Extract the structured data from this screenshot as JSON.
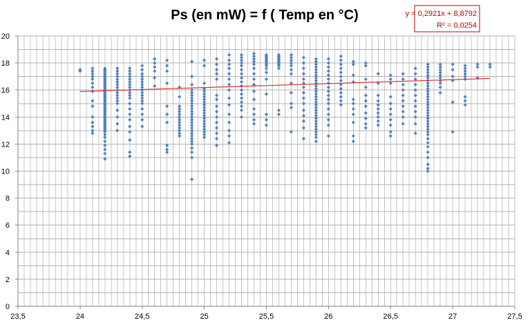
{
  "chart_data": {
    "type": "scatter",
    "title": "Ps (en mW) = f ( Temp en °C)",
    "xlabel": "",
    "ylabel": "",
    "xlim": [
      23.5,
      27.5
    ],
    "ylim": [
      0,
      20
    ],
    "x_ticks": [
      23.5,
      24,
      24.5,
      25,
      25.5,
      26,
      26.5,
      27,
      27.5
    ],
    "x_tick_labels": [
      "23,5",
      "24",
      "24,5",
      "25",
      "25,5",
      "26",
      "26,5",
      "27",
      "27,5"
    ],
    "y_ticks": [
      0,
      2,
      4,
      6,
      8,
      10,
      12,
      14,
      16,
      18,
      20
    ],
    "y_tick_labels": [
      "0",
      "2",
      "4",
      "6",
      "8",
      "10",
      "12",
      "14",
      "16",
      "18",
      "20"
    ],
    "grid": true,
    "legend": "none",
    "colors": {
      "points": "#4f81bd",
      "trendline": "#e0302a",
      "equation_border": "#c00000"
    },
    "trendline": {
      "type": "linear",
      "slope": 0.2921,
      "intercept": 8.8792,
      "x_range": [
        24,
        27.3
      ],
      "equation_text": "y = 0,2921x + 8,8792",
      "r2_text": "R² = 0,0254"
    },
    "series": [
      {
        "name": "Ps",
        "columns": [
          {
            "x": 24.0,
            "y": [
              17.5,
              17.4
            ]
          },
          {
            "x": 24.1,
            "y": [
              17.6,
              17.4,
              17.2,
              17.0,
              16.8,
              16.5,
              16.2,
              15.9,
              15.2,
              14.8,
              14.0,
              13.6,
              13.3,
              13.0,
              12.8
            ]
          },
          {
            "x": 24.2,
            "y": [
              17.6,
              17.5,
              17.4,
              17.3,
              17.2,
              17.1,
              17.0,
              16.9,
              16.8,
              16.7,
              16.6,
              16.5,
              16.4,
              16.3,
              16.2,
              16.1,
              16.0,
              15.9,
              15.8,
              15.7,
              15.6,
              15.5,
              15.4,
              15.3,
              15.2,
              15.1,
              15.0,
              14.9,
              14.8,
              14.7,
              14.6,
              14.5,
              14.4,
              14.3,
              14.2,
              14.1,
              14.0,
              13.9,
              13.8,
              13.7,
              13.6,
              13.5,
              13.4,
              13.3,
              13.2,
              13.1,
              13.0,
              12.9,
              12.7,
              12.5,
              12.2,
              11.9,
              11.6,
              11.3,
              10.9
            ]
          },
          {
            "x": 24.3,
            "y": [
              17.6,
              17.4,
              17.2,
              17.0,
              16.8,
              16.6,
              16.4,
              16.2,
              16.0,
              15.8,
              15.6,
              15.4,
              15.2,
              15.0,
              14.5,
              14.0,
              13.5,
              13.0
            ]
          },
          {
            "x": 24.4,
            "y": [
              17.6,
              17.4,
              17.2,
              17.0,
              16.8,
              16.6,
              16.4,
              16.2,
              16.0,
              15.8,
              15.6,
              15.4,
              15.0,
              14.6,
              14.2,
              13.8,
              13.3,
              12.9,
              12.3,
              11.4,
              11.1
            ]
          },
          {
            "x": 24.5,
            "y": [
              17.8,
              17.5,
              17.2,
              17.0,
              16.8,
              16.6,
              16.4,
              16.2,
              16.0,
              15.8,
              15.6,
              15.4,
              15.2,
              15.0,
              14.6,
              14.2,
              13.8,
              13.3
            ]
          },
          {
            "x": 24.6,
            "y": [
              18.3,
              18.0,
              17.7,
              17.4,
              16.9,
              16.3
            ]
          },
          {
            "x": 24.7,
            "y": [
              18.2,
              17.8,
              17.4,
              16.5,
              14.8,
              14.2,
              13.6,
              11.9,
              11.6,
              11.4
            ]
          },
          {
            "x": 24.8,
            "y": [
              16.2,
              15.5,
              14.8,
              14.6,
              14.4,
              14.2,
              14.0,
              13.8,
              13.6,
              13.4,
              13.2,
              13.0,
              12.8,
              12.6
            ]
          },
          {
            "x": 24.9,
            "y": [
              18.1,
              17.0,
              16.4,
              16.0,
              15.8,
              15.6,
              15.4,
              15.2,
              15.0,
              14.8,
              14.6,
              14.4,
              14.2,
              14.0,
              13.8,
              13.6,
              13.4,
              13.2,
              13.0,
              12.8,
              12.6,
              12.4,
              12.2,
              12.0,
              11.7,
              11.4,
              11.0,
              9.4
            ]
          },
          {
            "x": 25.0,
            "y": [
              18.2,
              17.8,
              16.5,
              16.1,
              15.9,
              15.7,
              15.5,
              15.3,
              15.1,
              14.9,
              14.7,
              14.5,
              14.3,
              14.1,
              13.9,
              13.7,
              13.5,
              13.3,
              13.1,
              12.9,
              12.7,
              12.5
            ]
          },
          {
            "x": 25.1,
            "y": [
              18.3,
              17.9,
              17.5,
              17.2,
              16.8,
              15.6,
              15.3,
              14.8,
              14.4,
              14.0,
              13.6,
              13.2,
              12.8,
              12.4,
              11.9
            ]
          },
          {
            "x": 25.2,
            "y": [
              18.6,
              18.2,
              17.9,
              17.6,
              17.2,
              16.8,
              16.4,
              16.0,
              15.4,
              14.9,
              14.2,
              13.6,
              13.0,
              12.6,
              12.1
            ]
          },
          {
            "x": 25.3,
            "y": [
              18.6,
              18.4,
              18.2,
              18.0,
              17.8,
              17.5,
              17.2,
              16.9,
              16.6,
              16.3,
              16.0,
              15.7,
              15.4,
              15.1,
              14.8,
              14.5,
              14.0
            ]
          },
          {
            "x": 25.4,
            "y": [
              18.7,
              18.5,
              18.3,
              18.1,
              17.9,
              17.6,
              17.2,
              16.8,
              16.4,
              15.9,
              15.3,
              14.6,
              14.2,
              13.8,
              13.5
            ]
          },
          {
            "x": 25.5,
            "y": [
              18.6,
              18.5,
              18.4,
              18.3,
              18.2,
              18.1,
              18.0,
              17.9,
              17.8,
              17.6,
              17.3,
              16.8,
              15.7,
              14.2,
              13.8,
              13.4
            ]
          },
          {
            "x": 25.6,
            "y": [
              18.6,
              18.5,
              18.4,
              18.3,
              18.2,
              18.1,
              18.0,
              17.9,
              17.8,
              17.6,
              14.5,
              14.2
            ]
          },
          {
            "x": 25.7,
            "y": [
              18.6,
              18.4,
              18.2,
              18.0,
              17.8,
              17.5,
              17.2,
              16.5,
              15.8,
              15.0,
              14.7,
              12.9
            ]
          },
          {
            "x": 25.8,
            "y": [
              18.4,
              18.0,
              17.6,
              17.2,
              16.8,
              16.5,
              16.2,
              15.8,
              15.4,
              15.0,
              14.5,
              14.1,
              13.7,
              13.2,
              12.4
            ]
          },
          {
            "x": 25.9,
            "y": [
              18.3,
              18.1,
              17.9,
              17.7,
              17.5,
              17.3,
              17.1,
              16.9,
              16.7,
              16.5,
              16.3,
              16.1,
              15.9,
              15.7,
              15.5,
              15.3,
              15.1,
              14.9,
              14.7,
              14.5,
              14.3,
              14.1,
              13.9,
              13.7,
              13.5,
              13.3,
              13.1,
              12.9,
              12.7,
              12.5,
              12.2
            ]
          },
          {
            "x": 26.0,
            "y": [
              18.3,
              18.0,
              17.7,
              17.4,
              17.1,
              16.8,
              16.5,
              16.2,
              15.9,
              15.6,
              15.3,
              15.0,
              14.6,
              14.2,
              13.8,
              13.4,
              12.6
            ]
          },
          {
            "x": 26.1,
            "y": [
              18.5,
              18.2,
              17.9,
              17.6,
              17.3,
              17.0,
              16.7,
              16.4,
              16.1,
              15.8,
              15.5,
              15.2,
              14.9
            ]
          },
          {
            "x": 26.2,
            "y": [
              18.1,
              17.9,
              17.1,
              16.6,
              15.3,
              15.0,
              14.6,
              14.2,
              13.6,
              12.6,
              12.2
            ]
          },
          {
            "x": 26.3,
            "y": [
              18.0,
              17.8,
              16.8,
              16.2,
              15.6,
              15.2,
              14.8,
              14.3,
              13.9,
              13.5,
              13.2
            ]
          },
          {
            "x": 26.4,
            "y": [
              17.2,
              16.5,
              15.6,
              15.2,
              14.9,
              14.6,
              14.3,
              14.0,
              13.7,
              13.4
            ]
          },
          {
            "x": 26.5,
            "y": [
              17.1,
              16.8,
              16.5,
              15.5,
              15.0,
              14.6,
              14.2,
              13.8,
              13.4,
              12.9,
              12.6
            ]
          },
          {
            "x": 26.6,
            "y": [
              17.2,
              16.8,
              16.4,
              16.0,
              15.6,
              15.2,
              14.8,
              14.4,
              14.0,
              13.5
            ]
          },
          {
            "x": 26.7,
            "y": [
              17.6,
              17.2,
              16.8,
              16.4,
              16.0,
              15.6,
              15.2,
              14.8,
              14.4,
              14.0,
              13.5,
              12.8
            ]
          },
          {
            "x": 26.8,
            "y": [
              17.9,
              17.7,
              17.5,
              17.3,
              17.1,
              16.9,
              16.7,
              16.5,
              16.3,
              16.1,
              15.9,
              15.7,
              15.5,
              15.3,
              15.1,
              14.9,
              14.7,
              14.5,
              14.3,
              14.1,
              13.9,
              13.7,
              13.5,
              13.3,
              13.1,
              12.9,
              12.7,
              12.4,
              12.1,
              11.8,
              11.4,
              11.0,
              10.5,
              10.2,
              10.0
            ]
          },
          {
            "x": 26.9,
            "y": [
              17.9,
              17.7,
              17.5,
              17.3,
              17.1,
              16.9,
              16.7,
              16.5,
              16.2,
              15.8
            ]
          },
          {
            "x": 27.0,
            "y": [
              17.9,
              17.5,
              17.0,
              16.7,
              15.1,
              12.9
            ]
          },
          {
            "x": 27.1,
            "y": [
              17.8,
              17.6,
              17.4,
              17.2,
              17.0,
              16.8,
              15.5,
              15.2,
              14.9
            ]
          },
          {
            "x": 27.2,
            "y": [
              17.9,
              17.7,
              16.9
            ]
          },
          {
            "x": 27.3,
            "y": [
              17.9,
              17.7
            ]
          }
        ]
      }
    ]
  }
}
